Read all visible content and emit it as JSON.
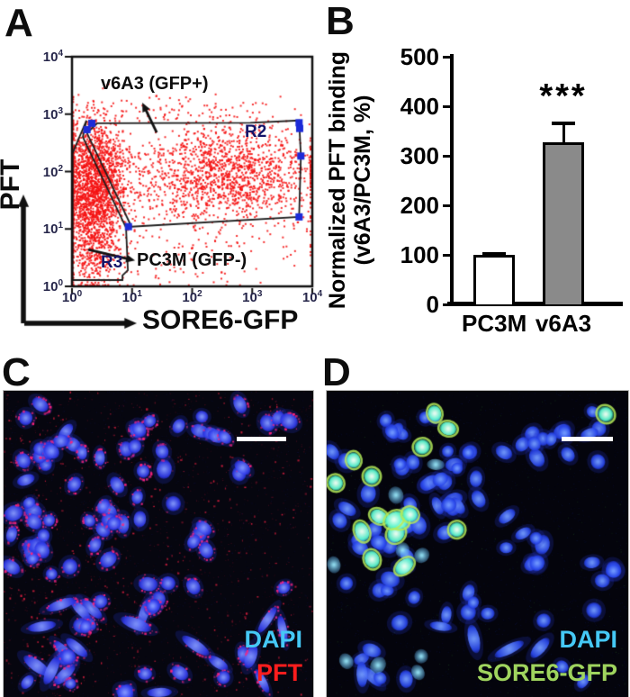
{
  "figure_type": "scientific-figure",
  "panels": {
    "A": {
      "label": "A",
      "axis_x_label": "SORE6-GFP",
      "axis_y_label": "PFT",
      "tick_base": "10",
      "x_tick_exponents": [
        "0",
        "1",
        "2",
        "3",
        "4"
      ],
      "y_tick_exponents": [
        "4",
        "3",
        "2",
        "1",
        "0"
      ],
      "gate_labels": {
        "r2": "R2",
        "r3": "R3"
      },
      "annotations": {
        "gfp_positive": "v6A3 (GFP+)",
        "gfp_negative": "PC3M (GFP-)"
      },
      "colors": {
        "dots": "#f51313",
        "handles": "#1c2bd8",
        "gate_lines": "#1c1c1c",
        "tick_text": "#26264a",
        "gate_label_text": "#15156a"
      }
    },
    "B": {
      "label": "B"
    },
    "C": {
      "label": "C",
      "legend": [
        {
          "text": "DAPI",
          "color": "#45c8f5"
        },
        {
          "text": "PFT",
          "color": "#ff1d1d"
        }
      ],
      "scalebar_color": "#ffffff"
    },
    "D": {
      "label": "D",
      "legend": [
        {
          "text": "DAPI",
          "color": "#45c8f5"
        },
        {
          "text": "SORE6-GFP",
          "color": "#9fd45e"
        }
      ],
      "scalebar_color": "#ffffff"
    }
  },
  "chart_data": [
    {
      "panel": "A",
      "type": "scatter",
      "subtype": "flow_cytometry_dot_plot",
      "xlabel": "SORE6-GFP",
      "ylabel": "PFT",
      "xscale": "log",
      "yscale": "log",
      "xlim": [
        1,
        10000
      ],
      "ylim": [
        1,
        10000
      ],
      "grid": false,
      "gates": [
        {
          "name": "R2",
          "vertices_log10": [
            [
              0.25,
              2.67
            ],
            [
              0.42,
              2.84
            ],
            [
              2.97,
              2.85
            ],
            [
              3.78,
              2.89
            ],
            [
              3.81,
              2.27
            ],
            [
              3.78,
              1.21
            ],
            [
              0.99,
              1.04
            ]
          ]
        },
        {
          "name": "R3",
          "vertices_log10": [
            [
              0.01,
              2.32
            ],
            [
              0.24,
              2.89
            ],
            [
              0.18,
              2.6
            ],
            [
              0.9,
              1.02
            ],
            [
              0.93,
              0.28
            ],
            [
              0.84,
              0.19
            ],
            [
              0.84,
              0.11
            ],
            [
              0.01,
              0.11
            ]
          ]
        }
      ],
      "gate_handles_log10": [
        [
          0.25,
          2.73
        ],
        [
          0.33,
          2.84
        ],
        [
          0.94,
          1.04
        ],
        [
          3.78,
          2.85
        ],
        [
          3.79,
          2.75
        ],
        [
          3.81,
          2.27
        ],
        [
          3.78,
          1.21
        ]
      ],
      "annotations": [
        {
          "text": "v6A3 (GFP+)",
          "arrow_from_log10": [
            1.41,
            2.68
          ],
          "arrow_to_log10": [
            1.17,
            3.2
          ]
        },
        {
          "text": "PC3M (GFP-)",
          "arrow_from_log10": [
            0.27,
            0.64
          ],
          "arrow_to_log10": [
            1.05,
            0.45
          ]
        }
      ],
      "point_clusters": [
        {
          "n": 1800,
          "mean_log10": [
            0.38,
            1.85
          ],
          "sd_log10": [
            0.27,
            0.52
          ]
        },
        {
          "n": 500,
          "mean_log10": [
            0.32,
            0.75
          ],
          "sd_log10": [
            0.25,
            0.45
          ]
        },
        {
          "n": 1500,
          "mean_log10": [
            2.55,
            1.95
          ],
          "sd_log10": [
            0.78,
            0.42
          ]
        },
        {
          "n": 150,
          "mean_log10": [
            2.0,
            0.6
          ],
          "sd_log10": [
            1.1,
            0.35
          ]
        },
        {
          "n": 80,
          "mean_log10": [
            2.0,
            3.05
          ],
          "sd_log10": [
            0.9,
            0.15
          ]
        }
      ]
    },
    {
      "panel": "B",
      "type": "bar",
      "categories": [
        "PC3M",
        "v6A3"
      ],
      "values": [
        100,
        327
      ],
      "errors": [
        4,
        40
      ],
      "bar_colors": [
        "#ffffff",
        "#8a8a8a"
      ],
      "bar_edge_color": "#000000",
      "ylabel": "Normalized PFT binding (v6A3/PC3M, %)",
      "ylabel_lines": [
        "Normalized PFT binding",
        "(v6A3/PC3M, %)"
      ],
      "ylim": [
        0,
        500
      ],
      "yticks": [
        0,
        100,
        200,
        300,
        400,
        500
      ],
      "significance": "***",
      "significance_on": "v6A3"
    }
  ]
}
